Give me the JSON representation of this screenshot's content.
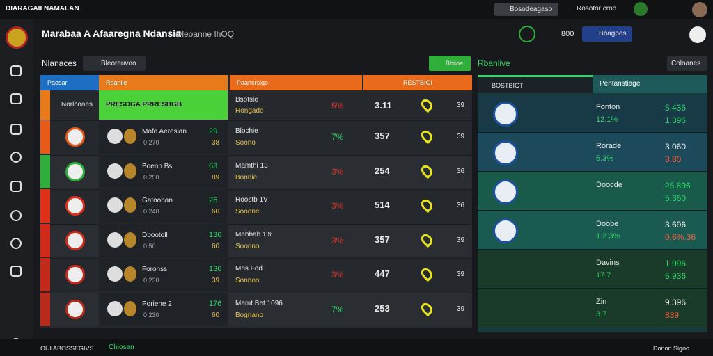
{
  "topbar": {
    "brand": "DIARAGAII NAMALAN",
    "button1": "Bosodeagaso",
    "button2": "Rosotor croo"
  },
  "header": {
    "title": "Marabaa A Afaaregna Ndansia",
    "subtitle": "Oleoanne IhOQ",
    "count": "800",
    "button": "Bbagoes"
  },
  "toolbar": {
    "label": "Nlanaces",
    "search": "Bleoreuvoo",
    "live_button": "Bbiioe",
    "live_label": "Rbanlive",
    "filter": "Coloanes"
  },
  "table": {
    "headers": [
      "Paosar",
      "Rbanlie",
      "Paancrsigo",
      "RESTBIGI"
    ],
    "highlight": {
      "name": "Norlcoaes",
      "team": "PRESOGA PRRESBGB",
      "match": "Bsotsie",
      "sub": "Rongado",
      "change": "5%",
      "value": "3.11",
      "count": "39"
    },
    "rows": [
      {
        "team": "Mofo Aeresian",
        "meta": "0 270",
        "odds": "29",
        "odds2": "38",
        "match": "Blochie",
        "sub": "Soono",
        "change": "7%",
        "up": true,
        "value": "357",
        "count": "39"
      },
      {
        "team": "Boenn Bs",
        "meta": "0 250",
        "odds": "63",
        "odds2": "89",
        "match": "Mamthi 13",
        "sub": "Bonnie",
        "change": "3%",
        "up": false,
        "value": "254",
        "count": "36"
      },
      {
        "team": "Gatoonan",
        "meta": "0 240",
        "odds": "26",
        "odds2": "60",
        "match": "Roostb 1V",
        "sub": "Sooone",
        "change": "3%",
        "up": false,
        "value": "514",
        "count": "36"
      },
      {
        "team": "Dbootoll",
        "meta": "0 50",
        "odds": "136",
        "odds2": "60",
        "match": "Mabbab 1%",
        "sub": "Soonno",
        "change": "3%",
        "up": false,
        "value": "357",
        "count": "39"
      },
      {
        "team": "Foronss",
        "meta": "0 230",
        "odds": "136",
        "odds2": "39",
        "match": "Mbs Fod",
        "sub": "Sonnoo",
        "change": "3%",
        "up": false,
        "value": "447",
        "count": "39"
      },
      {
        "team": "Poriene 2",
        "meta": "0 230",
        "odds": "176",
        "odds2": "60",
        "match": "Mamt Bet 1096",
        "sub": "Bognano",
        "change": "7%",
        "up": true,
        "value": "253",
        "count": "39"
      }
    ]
  },
  "panel": {
    "tab1": "BOSTBIGT",
    "tab2": "Pentanstiage",
    "rows": [
      {
        "label": "Fonton",
        "sub": "12.1%",
        "v1": "5.436",
        "v2": "1.396"
      },
      {
        "label": "Rorade",
        "sub": "5.3%",
        "v1": "3.060",
        "v2": "3.80"
      },
      {
        "label": "Doocde",
        "sub": "",
        "v1": "25.896",
        "v2": "5.360"
      },
      {
        "label": "Doobe",
        "sub": "1.2.3%",
        "v1": "3.696",
        "v2": "0.6%.36"
      },
      {
        "label": "Davins",
        "sub": "17.7",
        "v1": "1.996",
        "v2": "5.936"
      },
      {
        "label": "Zin",
        "sub": "3.7",
        "v1": "9.396",
        "v2": "839"
      }
    ]
  },
  "footer": {
    "left": "OUI ABOSSEGIVS",
    "mid": "Chiosan",
    "right": "Donon Sigoo"
  }
}
